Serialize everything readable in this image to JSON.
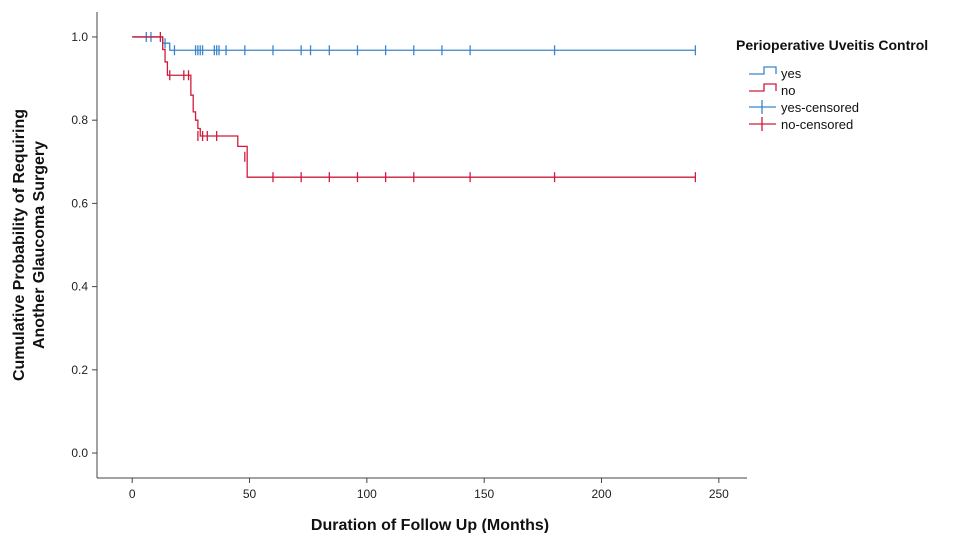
{
  "chart_data": {
    "type": "line",
    "title": "",
    "xlabel": "Duration of Follow Up (Months)",
    "ylabel_lines": [
      "Cumulative Probability of Requiring",
      "Another Glaucoma Surgery"
    ],
    "xlim": [
      -15,
      262
    ],
    "ylim": [
      -0.06,
      1.06
    ],
    "xticks": [
      0,
      50,
      100,
      150,
      200,
      250
    ],
    "yticks": [
      0.0,
      0.2,
      0.4,
      0.6,
      0.8,
      1.0
    ],
    "ytick_labels": [
      "0.0",
      "0.2",
      "0.4",
      "0.6",
      "0.8",
      "1.0"
    ],
    "grid": false,
    "legend": {
      "title": "Perioperative Uveitis Control",
      "position": "top-right",
      "entries": [
        "yes",
        "no",
        "yes-censored",
        "no-censored"
      ]
    },
    "series": [
      {
        "name": "yes",
        "color": "#3a86c8",
        "step": [
          [
            0,
            1.0
          ],
          [
            13,
            1.0
          ],
          [
            13,
            0.985
          ],
          [
            16,
            0.985
          ],
          [
            16,
            0.968
          ],
          [
            240,
            0.968
          ]
        ],
        "censored": [
          [
            6,
            1.0
          ],
          [
            8,
            1.0
          ],
          [
            14,
            0.985
          ],
          [
            18,
            0.968
          ],
          [
            27,
            0.968
          ],
          [
            28,
            0.968
          ],
          [
            29,
            0.968
          ],
          [
            30,
            0.968
          ],
          [
            35,
            0.968
          ],
          [
            36,
            0.968
          ],
          [
            37,
            0.968
          ],
          [
            40,
            0.968
          ],
          [
            48,
            0.968
          ],
          [
            60,
            0.968
          ],
          [
            72,
            0.968
          ],
          [
            76,
            0.968
          ],
          [
            84,
            0.968
          ],
          [
            96,
            0.968
          ],
          [
            108,
            0.968
          ],
          [
            120,
            0.968
          ],
          [
            132,
            0.968
          ],
          [
            144,
            0.968
          ],
          [
            180,
            0.968
          ],
          [
            240,
            0.968
          ]
        ]
      },
      {
        "name": "no",
        "color": "#d01c3c",
        "step": [
          [
            0,
            1.0
          ],
          [
            13,
            1.0
          ],
          [
            13,
            0.97
          ],
          [
            14,
            0.97
          ],
          [
            14,
            0.94
          ],
          [
            15,
            0.94
          ],
          [
            15,
            0.908
          ],
          [
            25,
            0.908
          ],
          [
            25,
            0.86
          ],
          [
            26,
            0.86
          ],
          [
            26,
            0.82
          ],
          [
            27,
            0.82
          ],
          [
            27,
            0.8
          ],
          [
            28,
            0.8
          ],
          [
            28,
            0.78
          ],
          [
            29,
            0.78
          ],
          [
            29,
            0.762
          ],
          [
            45,
            0.762
          ],
          [
            45,
            0.737
          ],
          [
            49,
            0.737
          ],
          [
            49,
            0.663
          ],
          [
            240,
            0.663
          ]
        ],
        "censored": [
          [
            12,
            1.0
          ],
          [
            16,
            0.908
          ],
          [
            22,
            0.908
          ],
          [
            24,
            0.908
          ],
          [
            28,
            0.762
          ],
          [
            30,
            0.762
          ],
          [
            32,
            0.762
          ],
          [
            36,
            0.762
          ],
          [
            48,
            0.712
          ],
          [
            60,
            0.663
          ],
          [
            72,
            0.663
          ],
          [
            84,
            0.663
          ],
          [
            96,
            0.663
          ],
          [
            108,
            0.663
          ],
          [
            120,
            0.663
          ],
          [
            144,
            0.663
          ],
          [
            180,
            0.663
          ],
          [
            240,
            0.663
          ]
        ]
      }
    ]
  }
}
